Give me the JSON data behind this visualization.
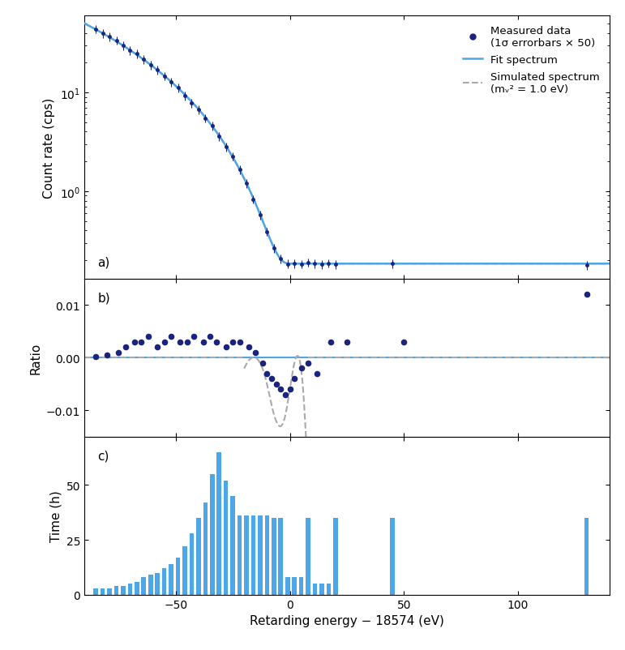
{
  "xlabel": "Retarding energy − 18574 (eV)",
  "ylabel_a": "Count rate (cps)",
  "ylabel_b": "Ratio",
  "ylabel_c": "Time (h)",
  "legend_measured": "Measured data\n(1σ errorbars × 50)",
  "legend_fit": "Fit spectrum",
  "legend_sim": "Simulated spectrum\n(mᵥ² = 1.0 eV)",
  "fit_color": "#4da6e8",
  "sim_color": "#aaaaaa",
  "data_color": "#1a237e",
  "bar_color": "#4da6e8",
  "xlim": [
    -90,
    140
  ],
  "ylim_a_log": [
    0.13,
    60
  ],
  "ylim_b": [
    -0.015,
    0.015
  ],
  "ylim_c": [
    0,
    72
  ],
  "ratio_data_x": [
    -85,
    -80,
    -75,
    -72,
    -68,
    -65,
    -62,
    -58,
    -55,
    -52,
    -48,
    -45,
    -42,
    -38,
    -35,
    -32,
    -28,
    -25,
    -22,
    -18,
    -15,
    -12,
    -10,
    -8,
    -6,
    -4,
    -2,
    0,
    2,
    5,
    8,
    12,
    18,
    25,
    50,
    130
  ],
  "ratio_data_y": [
    0.0002,
    0.0005,
    0.001,
    0.002,
    0.003,
    0.003,
    0.004,
    0.002,
    0.003,
    0.004,
    0.003,
    0.003,
    0.004,
    0.003,
    0.004,
    0.003,
    0.002,
    0.003,
    0.003,
    0.002,
    0.001,
    -0.001,
    -0.003,
    -0.004,
    -0.005,
    -0.006,
    -0.007,
    -0.006,
    -0.004,
    -0.002,
    -0.001,
    -0.003,
    0.003,
    0.003,
    0.003,
    0.012
  ],
  "sim_ratio_x": [
    -15,
    -12,
    -10,
    -8,
    -6,
    -4,
    -2,
    0,
    2,
    4
  ],
  "sim_ratio_y": [
    0.0,
    -0.002,
    -0.005,
    -0.009,
    -0.012,
    -0.013,
    -0.011,
    -0.006,
    -0.001,
    0.0
  ],
  "scan_energies": [
    -85,
    -82,
    -79,
    -76,
    -73,
    -70,
    -67,
    -64,
    -61,
    -58,
    -55,
    -52,
    -49,
    -46,
    -43,
    -40,
    -37,
    -34,
    -31,
    -28,
    -25,
    -22,
    -19,
    -16,
    -13,
    -10,
    -7,
    -4,
    -1,
    2,
    5,
    8,
    11,
    14,
    17,
    20,
    45,
    130
  ],
  "time_hours": [
    3,
    3,
    3,
    4,
    4,
    5,
    6,
    8,
    9,
    10,
    12,
    14,
    17,
    22,
    28,
    35,
    42,
    55,
    65,
    52,
    45,
    36,
    36,
    36,
    36,
    36,
    35,
    35,
    8,
    8,
    8,
    35,
    5,
    5,
    5,
    35,
    35,
    35
  ]
}
